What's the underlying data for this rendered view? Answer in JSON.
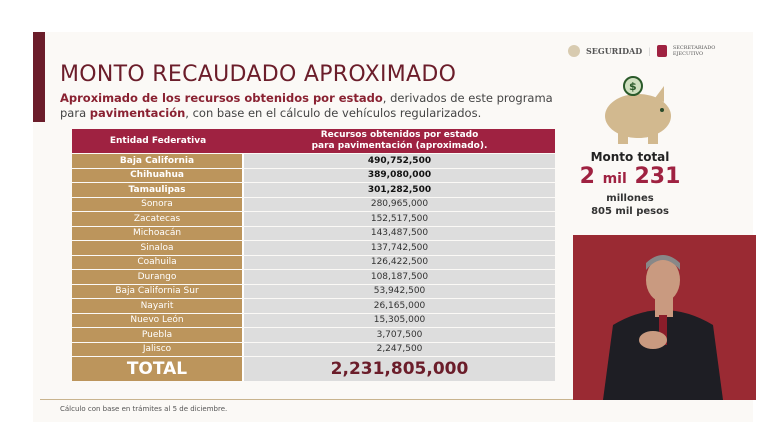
{
  "title": "MONTO RECAUDADO APROXIMADO",
  "subtitle": {
    "b1": "Aproximado de los recursos obtenidos por estado",
    "t1": ", derivados de este programa para ",
    "b2": "pavimentación",
    "t2": ", con base en el cálculo de vehículos regularizados."
  },
  "logos": {
    "seguridad": "SEGURIDAD",
    "secretariado": "SECRETARIADO EJECUTIVO"
  },
  "table": {
    "col1": "Entidad Federativa",
    "col2a": "Recursos obtenidos por estado",
    "col2b": "para pavimentación (aproximado).",
    "rows": [
      [
        "Baja California",
        "490,752,500"
      ],
      [
        "Chihuahua",
        "389,080,000"
      ],
      [
        "Tamaulipas",
        "301,282,500"
      ],
      [
        "Sonora",
        "280,965,000"
      ],
      [
        "Zacatecas",
        "152,517,500"
      ],
      [
        "Michoacán",
        "143,487,500"
      ],
      [
        "Sinaloa",
        "137,742,500"
      ],
      [
        "Coahuila",
        "126,422,500"
      ],
      [
        "Durango",
        "108,187,500"
      ],
      [
        "Baja California Sur",
        "53,942,500"
      ],
      [
        "Nayarit",
        "26,165,000"
      ],
      [
        "Nuevo León",
        "15,305,000"
      ],
      [
        "Puebla",
        "3,707,500"
      ],
      [
        "Jalisco",
        "2,247,500"
      ]
    ],
    "total_label": "TOTAL",
    "total_value": "2,231,805,000"
  },
  "summary": {
    "label": "Monto total",
    "big1": "2",
    "mil": "mil",
    "big2": "231",
    "l1": "millones",
    "l2": "805 mil pesos"
  },
  "footnote": "Cálculo con base en trámites al 5 de diciembre."
}
